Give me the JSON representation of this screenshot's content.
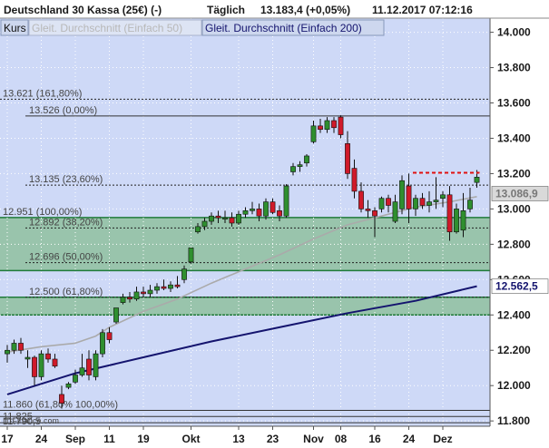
{
  "header": {
    "title": "Deutschland 30 Kassa (25€) (-)",
    "interval": "Täglich",
    "quote": "13.183,4 (+0,05%)",
    "datetime": "11.12.2017 07:12:16"
  },
  "legend": {
    "kurs": "Kurs",
    "ma50": "Gleit. Durchschnitt (Einfach 50)",
    "ma200": "Gleit. Durchschnitt (Einfach 200)"
  },
  "source": "IT-Finance.com",
  "colors": {
    "up": "#2f8f2f",
    "down": "#d01a2a",
    "ma50": "#aaaaaa",
    "ma200": "#14146e",
    "zone": "#8fbf9f",
    "plot_bg": "#ced9f7",
    "dashed_level": "#e01010"
  },
  "chart_data": {
    "type": "candlestick",
    "ylim": [
      11770,
      14080
    ],
    "yticks": [
      {
        "v": 11800,
        "label": "11.800"
      },
      {
        "v": 12000,
        "label": "12.000"
      },
      {
        "v": 12200,
        "label": "12.200"
      },
      {
        "v": 12400,
        "label": "12.400"
      },
      {
        "v": 12600,
        "label": "12.600"
      },
      {
        "v": 12800,
        "label": "12.800"
      },
      {
        "v": 13000,
        "label": "13.000"
      },
      {
        "v": 13200,
        "label": "13.200"
      },
      {
        "v": 13400,
        "label": "13.400"
      },
      {
        "v": 13600,
        "label": "13.600"
      },
      {
        "v": 13800,
        "label": "13.800"
      },
      {
        "v": 14000,
        "label": "14.000"
      }
    ],
    "xticks": [
      {
        "i": 0,
        "label": "17"
      },
      {
        "i": 5,
        "label": "24"
      },
      {
        "i": 10,
        "label": "Sep"
      },
      {
        "i": 15,
        "label": "11"
      },
      {
        "i": 20,
        "label": "19"
      },
      {
        "i": 27,
        "label": "Okt"
      },
      {
        "i": 34,
        "label": "13"
      },
      {
        "i": 39,
        "label": "23"
      },
      {
        "i": 45,
        "label": "Nov"
      },
      {
        "i": 49,
        "label": "08"
      },
      {
        "i": 54,
        "label": "16"
      },
      {
        "i": 59,
        "label": "24"
      },
      {
        "i": 64,
        "label": "Dez"
      }
    ],
    "candles": [
      {
        "o": 12180,
        "h": 12230,
        "l": 12130,
        "c": 12200
      },
      {
        "o": 12200,
        "h": 12260,
        "l": 12180,
        "c": 12240
      },
      {
        "o": 12240,
        "h": 12270,
        "l": 12180,
        "c": 12200
      },
      {
        "o": 12150,
        "h": 12200,
        "l": 12100,
        "c": 12160
      },
      {
        "o": 12160,
        "h": 12170,
        "l": 12000,
        "c": 12050
      },
      {
        "o": 12050,
        "h": 12200,
        "l": 12030,
        "c": 12180
      },
      {
        "o": 12180,
        "h": 12210,
        "l": 12130,
        "c": 12150
      },
      {
        "o": 12150,
        "h": 12180,
        "l": 12100,
        "c": 12110
      },
      {
        "o": 11950,
        "h": 12000,
        "l": 11870,
        "c": 11900
      },
      {
        "o": 11990,
        "h": 12020,
        "l": 11980,
        "c": 12010
      },
      {
        "o": 12020,
        "h": 12090,
        "l": 12010,
        "c": 12060
      },
      {
        "o": 12060,
        "h": 12180,
        "l": 12050,
        "c": 12100
      },
      {
        "o": 12150,
        "h": 12200,
        "l": 12030,
        "c": 12060
      },
      {
        "o": 12050,
        "h": 12200,
        "l": 12030,
        "c": 12180
      },
      {
        "o": 12180,
        "h": 12320,
        "l": 12160,
        "c": 12300
      },
      {
        "o": 12300,
        "h": 12330,
        "l": 12240,
        "c": 12260
      },
      {
        "o": 12360,
        "h": 12440,
        "l": 12350,
        "c": 12440
      },
      {
        "o": 12470,
        "h": 12520,
        "l": 12460,
        "c": 12500
      },
      {
        "o": 12500,
        "h": 12530,
        "l": 12470,
        "c": 12490
      },
      {
        "o": 12490,
        "h": 12560,
        "l": 12480,
        "c": 12530
      },
      {
        "o": 12530,
        "h": 12560,
        "l": 12500,
        "c": 12520
      },
      {
        "o": 12520,
        "h": 12570,
        "l": 12500,
        "c": 12540
      },
      {
        "o": 12540,
        "h": 12580,
        "l": 12520,
        "c": 12560
      },
      {
        "o": 12560,
        "h": 12600,
        "l": 12540,
        "c": 12550
      },
      {
        "o": 12550,
        "h": 12590,
        "l": 12530,
        "c": 12570
      },
      {
        "o": 12570,
        "h": 12620,
        "l": 12550,
        "c": 12560
      },
      {
        "o": 12600,
        "h": 12680,
        "l": 12580,
        "c": 12660
      },
      {
        "o": 12700,
        "h": 12780,
        "l": 12690,
        "c": 12780
      },
      {
        "o": 12870,
        "h": 12920,
        "l": 12860,
        "c": 12900
      },
      {
        "o": 12900,
        "h": 12950,
        "l": 12880,
        "c": 12930
      },
      {
        "o": 12930,
        "h": 12980,
        "l": 12910,
        "c": 12960
      },
      {
        "o": 12960,
        "h": 12990,
        "l": 12920,
        "c": 12950
      },
      {
        "o": 12950,
        "h": 12990,
        "l": 12920,
        "c": 12950
      },
      {
        "o": 12950,
        "h": 12980,
        "l": 12900,
        "c": 12920
      },
      {
        "o": 12920,
        "h": 12990,
        "l": 12910,
        "c": 12970
      },
      {
        "o": 12970,
        "h": 13010,
        "l": 12950,
        "c": 12990
      },
      {
        "o": 12990,
        "h": 13040,
        "l": 12970,
        "c": 13000
      },
      {
        "o": 13000,
        "h": 13030,
        "l": 12930,
        "c": 12960
      },
      {
        "o": 12960,
        "h": 13060,
        "l": 12940,
        "c": 13040
      },
      {
        "o": 13040,
        "h": 13060,
        "l": 12970,
        "c": 12980
      },
      {
        "o": 12990,
        "h": 13020,
        "l": 12930,
        "c": 12960
      },
      {
        "o": 12960,
        "h": 13140,
        "l": 12950,
        "c": 13130
      },
      {
        "o": 13210,
        "h": 13260,
        "l": 13190,
        "c": 13240
      },
      {
        "o": 13240,
        "h": 13270,
        "l": 13210,
        "c": 13250
      },
      {
        "o": 13260,
        "h": 13310,
        "l": 13240,
        "c": 13300
      },
      {
        "o": 13380,
        "h": 13500,
        "l": 13370,
        "c": 13470
      },
      {
        "o": 13470,
        "h": 13510,
        "l": 13430,
        "c": 13450
      },
      {
        "o": 13450,
        "h": 13520,
        "l": 13430,
        "c": 13500
      },
      {
        "o": 13500,
        "h": 13520,
        "l": 13430,
        "c": 13460
      },
      {
        "o": 13520,
        "h": 13530,
        "l": 13400,
        "c": 13420
      },
      {
        "o": 13370,
        "h": 13440,
        "l": 13170,
        "c": 13200
      },
      {
        "o": 13230,
        "h": 13280,
        "l": 13060,
        "c": 13100
      },
      {
        "o": 13100,
        "h": 13150,
        "l": 12980,
        "c": 13000
      },
      {
        "o": 13000,
        "h": 13050,
        "l": 12950,
        "c": 12990
      },
      {
        "o": 12990,
        "h": 13010,
        "l": 12840,
        "c": 12960
      },
      {
        "o": 13000,
        "h": 13070,
        "l": 12980,
        "c": 13060
      },
      {
        "o": 13060,
        "h": 13080,
        "l": 12980,
        "c": 13020
      },
      {
        "o": 12930,
        "h": 13080,
        "l": 12920,
        "c": 13040
      },
      {
        "o": 13000,
        "h": 13190,
        "l": 12970,
        "c": 13160
      },
      {
        "o": 13130,
        "h": 13200,
        "l": 12920,
        "c": 13000
      },
      {
        "o": 13000,
        "h": 13080,
        "l": 12960,
        "c": 13060
      },
      {
        "o": 13060,
        "h": 13090,
        "l": 13000,
        "c": 13020
      },
      {
        "o": 13020,
        "h": 13100,
        "l": 12980,
        "c": 13040
      },
      {
        "o": 13040,
        "h": 13180,
        "l": 13000,
        "c": 13050
      },
      {
        "o": 13060,
        "h": 13100,
        "l": 13010,
        "c": 13080
      },
      {
        "o": 13080,
        "h": 13130,
        "l": 12820,
        "c": 12870
      },
      {
        "o": 12870,
        "h": 13030,
        "l": 12860,
        "c": 13000
      },
      {
        "o": 12880,
        "h": 13090,
        "l": 12840,
        "c": 12990
      },
      {
        "o": 13000,
        "h": 13120,
        "l": 12980,
        "c": 13050
      },
      {
        "o": 13150,
        "h": 13220,
        "l": 13120,
        "c": 13180
      }
    ],
    "ma50": [
      [
        0,
        12190
      ],
      [
        5,
        12220
      ],
      [
        10,
        12240
      ],
      [
        13,
        12280
      ],
      [
        15,
        12330
      ],
      [
        20,
        12420
      ],
      [
        25,
        12490
      ],
      [
        30,
        12580
      ],
      [
        35,
        12660
      ],
      [
        40,
        12740
      ],
      [
        45,
        12830
      ],
      [
        50,
        12910
      ],
      [
        55,
        12960
      ],
      [
        60,
        13010
      ],
      [
        65,
        13040
      ],
      [
        69,
        13070
      ]
    ],
    "ma200": [
      [
        0,
        11950
      ],
      [
        10,
        12070
      ],
      [
        20,
        12160
      ],
      [
        30,
        12250
      ],
      [
        40,
        12330
      ],
      [
        50,
        12410
      ],
      [
        60,
        12480
      ],
      [
        69,
        12562.5
      ]
    ],
    "fib_levels": [
      {
        "v": 13621,
        "label": "13.621 (161,80%)",
        "style": "dotted"
      },
      {
        "v": 13526,
        "label": "13.526 (0,00%)",
        "style": "solid"
      },
      {
        "v": 13135,
        "label": "13.135 (23,60%)",
        "style": "dotted"
      },
      {
        "v": 12951,
        "label": "12.951 (100,00%)",
        "style": "zone-top"
      },
      {
        "v": 12892,
        "label": "12.892 (38,20%)",
        "style": "dotted"
      },
      {
        "v": 12696,
        "label": "12.696 (50,00%)",
        "style": "dotted"
      },
      {
        "v": 12500,
        "label": "12.500 (61,80%)",
        "style": "dotted"
      },
      {
        "v": 11860,
        "label": "11.860 (61,80% 100,00%)",
        "style": "solid"
      },
      {
        "v": 11825,
        "label": "11.825",
        "style": "solid"
      },
      {
        "v": 11790,
        "label": "11.790,5",
        "style": "solid"
      }
    ],
    "zones": [
      {
        "from": 12651,
        "to": 12951
      },
      {
        "from": 12400,
        "to": 12500
      }
    ],
    "dashed_level": {
      "v": 13205,
      "from_i": 60,
      "to_i": 69
    },
    "last_price": {
      "v": 13086.9,
      "label": "13.086,9"
    },
    "ma200_last": {
      "v": 12562.5,
      "label": "12.562,5"
    }
  }
}
